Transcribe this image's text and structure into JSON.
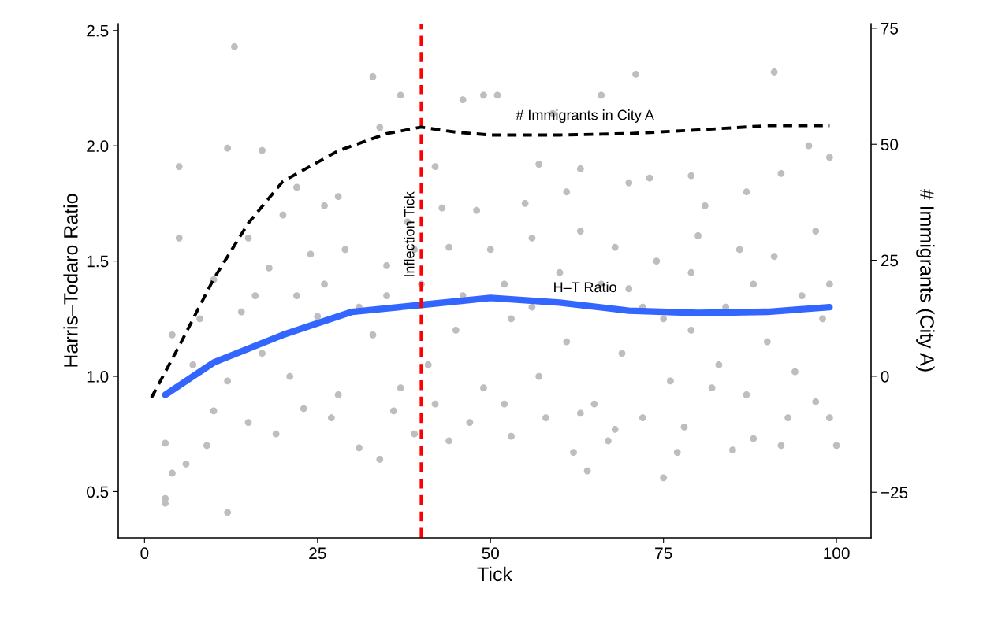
{
  "chart_data": {
    "type": "scatter",
    "xlabel": "Tick",
    "ylabel": "Harris–Todaro Ratio",
    "y2label": "# Immigrants (City A)",
    "xlim": [
      -3.8,
      105
    ],
    "xticks": [
      0,
      25,
      50,
      75,
      100
    ],
    "ylim": [
      0.3,
      2.53
    ],
    "yticks": [
      0.5,
      {
        "value": 1,
        "label": "1.0"
      },
      1.5,
      {
        "value": 2,
        "label": "2.0"
      },
      2.5
    ],
    "y2lim": [
      -34.8,
      76
    ],
    "y2ticks": [
      -25,
      0,
      25,
      50,
      75
    ],
    "grid": false,
    "legend": false,
    "series": [
      {
        "color": "#bebebe",
        "marker": "circle",
        "x": [
          13,
          5,
          12,
          3,
          3,
          33,
          91,
          71,
          66,
          59,
          46,
          49,
          51,
          37,
          75,
          64,
          100,
          17,
          12,
          22,
          34,
          28,
          31,
          34,
          39,
          44,
          53,
          62,
          68,
          77,
          85,
          92,
          97,
          42,
          57,
          63,
          70,
          73,
          79,
          87,
          92,
          96,
          99,
          81,
          61,
          55,
          48,
          43,
          38,
          26,
          20,
          10,
          5,
          8,
          15,
          18,
          24,
          29,
          35,
          39,
          44,
          50,
          56,
          63,
          68,
          74,
          80,
          86,
          91,
          97,
          4,
          7,
          10,
          14,
          17,
          21,
          25,
          28,
          33,
          37,
          41,
          45,
          49,
          53,
          57,
          61,
          65,
          69,
          72,
          76,
          79,
          83,
          87,
          90,
          94,
          98,
          6,
          9,
          15,
          19,
          23,
          27,
          36,
          42,
          47,
          52,
          58,
          63,
          67,
          72,
          78,
          82,
          88,
          93,
          99,
          3,
          4,
          12,
          16,
          22,
          26,
          31,
          35,
          40,
          46,
          52,
          56,
          60,
          66,
          70,
          75,
          79,
          84,
          88,
          95,
          99
        ],
        "values": [
          2.43,
          1.91,
          0.41,
          0.45,
          0.47,
          2.3,
          2.32,
          2.31,
          2.22,
          2.14,
          2.2,
          2.22,
          2.22,
          2.22,
          0.56,
          0.59,
          0.7,
          1.98,
          1.99,
          1.82,
          2.08,
          1.78,
          0.69,
          0.64,
          0.75,
          0.72,
          0.74,
          0.67,
          0.77,
          0.67,
          0.68,
          0.7,
          0.89,
          1.91,
          1.92,
          1.9,
          1.84,
          1.86,
          1.87,
          1.8,
          1.88,
          2.0,
          1.95,
          1.74,
          1.8,
          1.75,
          1.72,
          1.73,
          1.67,
          1.74,
          1.7,
          1.42,
          1.6,
          1.25,
          1.6,
          1.47,
          1.53,
          1.55,
          1.48,
          1.55,
          1.56,
          1.55,
          1.6,
          1.63,
          1.56,
          1.5,
          1.61,
          1.55,
          1.52,
          1.63,
          1.18,
          1.05,
          0.85,
          1.28,
          1.1,
          1.0,
          1.26,
          0.92,
          1.18,
          0.95,
          1.05,
          1.2,
          0.95,
          1.25,
          1.0,
          1.15,
          0.88,
          1.1,
          1.3,
          0.98,
          1.2,
          1.05,
          0.92,
          1.15,
          1.02,
          1.25,
          0.62,
          0.7,
          0.8,
          0.75,
          0.86,
          0.82,
          0.85,
          0.88,
          0.8,
          0.88,
          0.82,
          0.84,
          0.72,
          0.82,
          0.78,
          0.95,
          0.73,
          0.82,
          0.82,
          0.71,
          0.58,
          0.98,
          1.35,
          1.35,
          1.4,
          1.3,
          1.35,
          1.4,
          1.35,
          1.4,
          1.3,
          1.45,
          1.4,
          1.38,
          1.25,
          1.45,
          1.3,
          1.4,
          1.35,
          1.4
        ]
      },
      {
        "type": "line",
        "color": "#3366ff",
        "line_style": "solid",
        "x": [
          3,
          10,
          20,
          30,
          40,
          50,
          60,
          70,
          80,
          90,
          99
        ],
        "values": [
          0.92,
          1.06,
          1.18,
          1.28,
          1.31,
          1.34,
          1.32,
          1.285,
          1.275,
          1.28,
          1.3
        ]
      },
      {
        "type": "line",
        "color": "#000000",
        "line_style": "dashed",
        "axis": "y2",
        "x": [
          1,
          5,
          10,
          15,
          20,
          28,
          35,
          40,
          45,
          50,
          60,
          70,
          80,
          90,
          99
        ],
        "values": [
          -4.6,
          6.5,
          21,
          33,
          42,
          48.6,
          52.3,
          53.7,
          52.6,
          52,
          52,
          52.3,
          53.1,
          54,
          54
        ]
      }
    ],
    "ref_lines": [
      {
        "axis": "x",
        "value": 40,
        "label": "Inflection Tick",
        "color": "#ff0000",
        "line_style": "dashed"
      }
    ],
    "annotations": [
      "H–T Ratio",
      "# Immigrants in City A"
    ]
  }
}
